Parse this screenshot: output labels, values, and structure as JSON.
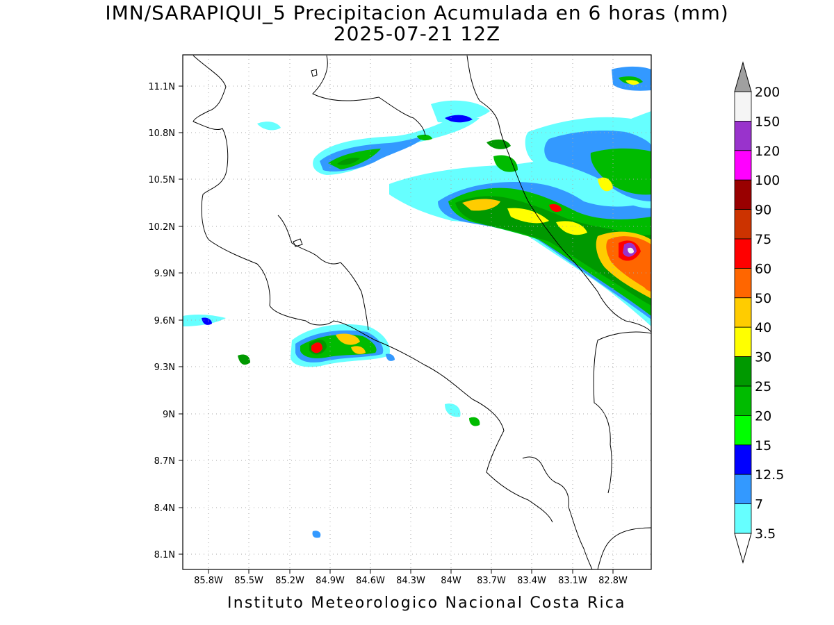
{
  "title": {
    "line1": "IMN/SARAPIQUI_5 Precipitacion Acumulada en 6 horas (mm)",
    "line2": "2025-07-21 12Z"
  },
  "footer": "Instituto Meteorologico Nacional Costa Rica",
  "map": {
    "lon_range": [
      -86.0,
      -82.6
    ],
    "lat_range": [
      8.0,
      11.3
    ],
    "lat_ticks": [
      "11.1N",
      "10.8N",
      "10.5N",
      "10.2N",
      "9.9N",
      "9.6N",
      "9.3N",
      "9N",
      "8.7N",
      "8.4N",
      "8.1N"
    ],
    "lon_ticks": [
      "85.8W",
      "85.5W",
      "85.2W",
      "84.9W",
      "84.6W",
      "84.3W",
      "84W",
      "83.7W",
      "83.4W",
      "83.1W",
      "82.8W"
    ],
    "grid": "dotted"
  },
  "colorbar": {
    "levels": [
      "200",
      "150",
      "120",
      "100",
      "90",
      "75",
      "60",
      "50",
      "40",
      "30",
      "25",
      "20",
      "15",
      "12.5",
      "7",
      "3.5"
    ],
    "colors": [
      "#f5f5f5",
      "#9933cc",
      "#ff00ff",
      "#990000",
      "#cc3300",
      "#ff0000",
      "#ff6600",
      "#ffcc00",
      "#ffff00",
      "#009900",
      "#00bb00",
      "#00ff00",
      "#0000ff",
      "#3399ff",
      "#66ffff"
    ],
    "top_arrow_color": "#a0a0a0",
    "bottom_arrow_color": "#ffffff"
  }
}
